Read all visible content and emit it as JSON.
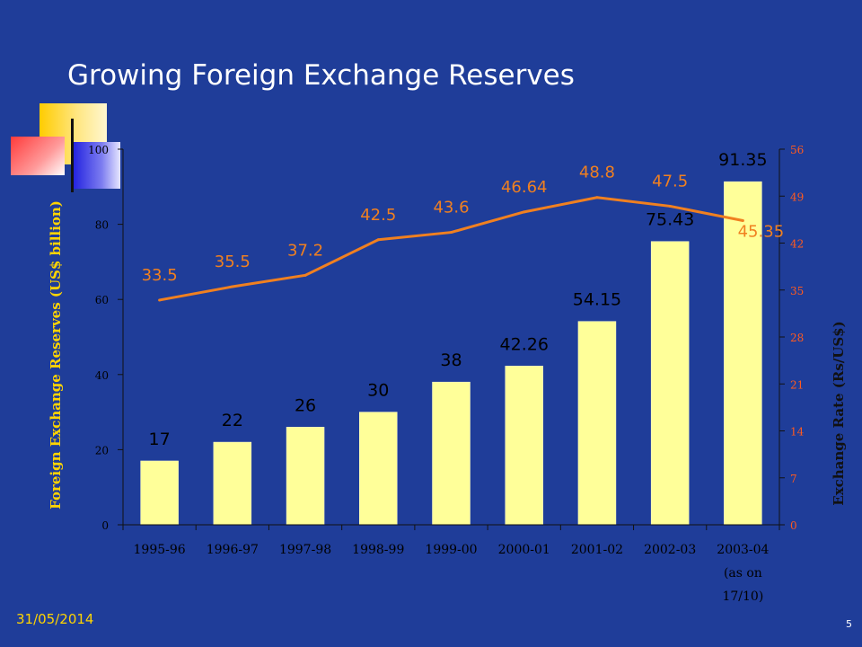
{
  "slide": {
    "title": "Growing Foreign Exchange Reserves",
    "date": "31/05/2014",
    "page_number": "5"
  },
  "colors": {
    "background": "#1f3d99",
    "bar_fill": "#ffff99",
    "bar_label": "#000000",
    "line": "#f08020",
    "line_label": "#f08020",
    "left_axis_label": "#ffd400",
    "right_axis_label": "#111111",
    "right_tick_label": "#ff5a1e",
    "x_tick_label": "#000000"
  },
  "chart_data": {
    "type": "bar",
    "categories": [
      "1995-96",
      "1996-97",
      "1997-98",
      "1998-99",
      "1999-00",
      "2000-01",
      "2001-02",
      "2002-03",
      "2003-04"
    ],
    "category_notes": {
      "2003-04": [
        "(as on",
        "17/10)"
      ]
    },
    "series": [
      {
        "type": "bar",
        "axis": "left",
        "values": [
          17,
          22,
          26,
          30,
          38,
          42.26,
          54.15,
          75.43,
          91.35
        ],
        "labels": [
          "17",
          "22",
          "26",
          "30",
          "38",
          "42.26",
          "54.15",
          "75.43",
          "91.35"
        ]
      },
      {
        "type": "line",
        "axis": "right",
        "values": [
          33.5,
          35.5,
          37.2,
          42.5,
          43.6,
          46.64,
          48.8,
          47.5,
          45.35
        ],
        "labels": [
          "33.5",
          "35.5",
          "37.2",
          "42.5",
          "43.6",
          "46.64",
          "48.8",
          "47.5",
          "45.35"
        ]
      }
    ],
    "ylabel": "Foreign Exchange Reserves (US$ billion)",
    "ylabel_right": "Exchange Rate (Rs/US$)",
    "ylim": [
      0,
      100
    ],
    "yticks": [
      0,
      20,
      40,
      60,
      80,
      100
    ],
    "ylim_right": [
      0,
      56
    ],
    "yticks_right": [
      0,
      7,
      14,
      21,
      28,
      35,
      42,
      49,
      56
    ],
    "grid": false
  }
}
